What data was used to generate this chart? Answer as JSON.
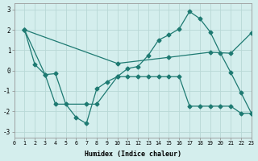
{
  "xlabel": "Humidex (Indice chaleur)",
  "background_color": "#d4eeed",
  "grid_color": "#b8d8d6",
  "line_color": "#1e7a72",
  "xlim": [
    0,
    23
  ],
  "ylim": [
    -3.3,
    3.3
  ],
  "yticks": [
    -3,
    -2,
    -1,
    0,
    1,
    2,
    3
  ],
  "xticks": [
    0,
    1,
    2,
    3,
    4,
    5,
    6,
    7,
    8,
    9,
    10,
    11,
    12,
    13,
    14,
    15,
    16,
    17,
    18,
    19,
    20,
    21,
    22,
    23
  ],
  "series1_x": [
    1,
    2,
    3,
    4,
    5,
    6,
    7,
    8,
    9,
    10,
    11,
    12,
    13,
    14,
    15,
    16,
    17,
    18,
    19,
    20,
    21,
    22,
    23
  ],
  "series1_y": [
    2.0,
    0.3,
    -0.2,
    -0.15,
    -1.65,
    -2.3,
    -2.6,
    -0.9,
    -0.55,
    -0.3,
    0.1,
    0.2,
    0.75,
    1.5,
    1.75,
    2.05,
    2.9,
    2.55,
    1.9,
    0.85,
    -0.1,
    -1.1,
    -2.1
  ],
  "series2_x": [
    1,
    3,
    4,
    7,
    8,
    10,
    11,
    12,
    13,
    14,
    15,
    16,
    17,
    18,
    19,
    20,
    21,
    22,
    23
  ],
  "series2_y": [
    2.0,
    -0.2,
    -1.65,
    -1.65,
    -1.65,
    -0.3,
    -0.3,
    -0.3,
    -0.3,
    -0.3,
    -0.3,
    -0.3,
    -1.75,
    -1.75,
    -1.75,
    -1.75,
    -1.75,
    -2.1,
    -2.1
  ],
  "series3_x": [
    1,
    10,
    15,
    19,
    21,
    23
  ],
  "series3_y": [
    2.0,
    0.35,
    0.65,
    0.9,
    0.85,
    1.85
  ]
}
